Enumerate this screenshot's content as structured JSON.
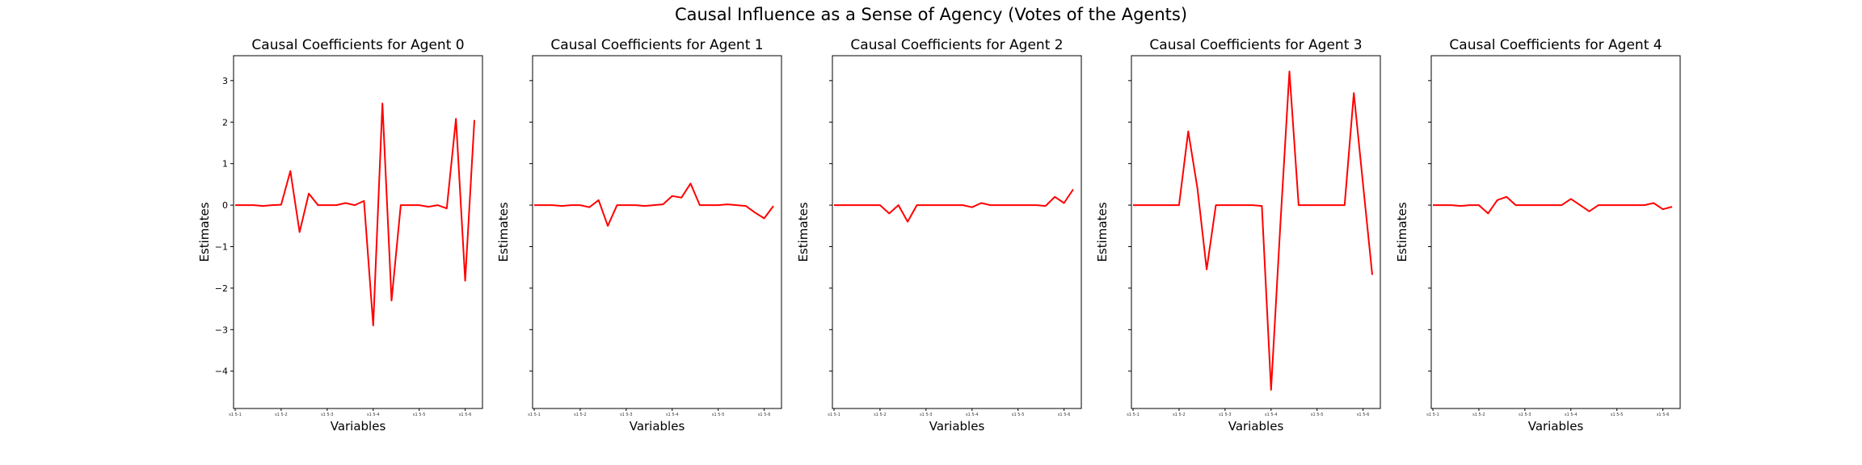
{
  "figure": {
    "title": "Causal Influence as a Sense of Agency (Votes of the Agents)"
  },
  "chart_data": [
    {
      "type": "line",
      "title": "Causal Coefficients for Agent 0",
      "xlabel": "Variables",
      "ylabel": "Estimates",
      "ylim": [
        -4.9,
        3.6
      ],
      "yticks": [
        -4,
        -3,
        -2,
        -1,
        0,
        1,
        2,
        3
      ],
      "show_ytick_labels": true,
      "xtick_labels": [
        "s1 5-1",
        "s1 5-2",
        "s1 5-3",
        "s1 5-4",
        "s1 5-5",
        "s1 5-6"
      ],
      "line_color": "#ff0000",
      "values": [
        0,
        0,
        0,
        -0.02,
        0,
        0.01,
        0.82,
        -0.65,
        0.28,
        0,
        0,
        0,
        0.05,
        0,
        0.1,
        -2.9,
        2.45,
        -2.3,
        0,
        0,
        0,
        -0.04,
        0,
        -0.08,
        2.08,
        -1.82,
        2.05
      ]
    },
    {
      "type": "line",
      "title": "Causal Coefficients for Agent 1",
      "xlabel": "Variables",
      "ylabel": "Estimates",
      "ylim": [
        -4.9,
        3.6
      ],
      "yticks": [
        -4,
        -3,
        -2,
        -1,
        0,
        1,
        2,
        3
      ],
      "show_ytick_labels": false,
      "xtick_labels": [
        "s1 5-1",
        "s1 5-2",
        "s1 5-3",
        "s1 5-4",
        "s1 5-5",
        "s1 5-6"
      ],
      "line_color": "#ff0000",
      "values": [
        0,
        0,
        0,
        -0.02,
        0,
        0,
        -0.05,
        0.12,
        -0.5,
        0,
        0,
        0,
        -0.02,
        0,
        0.02,
        0.22,
        0.18,
        0.52,
        0,
        0,
        0,
        0.02,
        0,
        -0.02,
        -0.18,
        -0.32,
        -0.02
      ]
    },
    {
      "type": "line",
      "title": "Causal Coefficients for Agent 2",
      "xlabel": "Variables",
      "ylabel": "Estimates",
      "ylim": [
        -4.9,
        3.6
      ],
      "yticks": [
        -4,
        -3,
        -2,
        -1,
        0,
        1,
        2,
        3
      ],
      "show_ytick_labels": false,
      "xtick_labels": [
        "s1 5-1",
        "s1 5-2",
        "s1 5-3",
        "s1 5-4",
        "s1 5-5",
        "s1 5-6"
      ],
      "line_color": "#ff0000",
      "values": [
        0,
        0,
        0,
        0,
        0,
        0,
        -0.2,
        0,
        -0.4,
        0,
        0,
        0,
        0,
        0,
        0,
        -0.05,
        0.05,
        0,
        0,
        0,
        0,
        0,
        0,
        -0.02,
        0.2,
        0.05,
        0.38
      ]
    },
    {
      "type": "line",
      "title": "Causal Coefficients for Agent 3",
      "xlabel": "Variables",
      "ylabel": "Estimates",
      "ylim": [
        -4.9,
        3.6
      ],
      "yticks": [
        -4,
        -3,
        -2,
        -1,
        0,
        1,
        2,
        3
      ],
      "show_ytick_labels": false,
      "xtick_labels": [
        "s1 5-1",
        "s1 5-2",
        "s1 5-3",
        "s1 5-4",
        "s1 5-5",
        "s1 5-6"
      ],
      "line_color": "#ff0000",
      "values": [
        0,
        0,
        0,
        0,
        0,
        0,
        1.78,
        0.4,
        -1.55,
        0,
        0,
        0,
        0,
        0,
        -0.02,
        -4.45,
        -0.5,
        3.22,
        0,
        0,
        0,
        0,
        0,
        0,
        2.7,
        0.5,
        -1.68
      ]
    },
    {
      "type": "line",
      "title": "Causal Coefficients for Agent 4",
      "xlabel": "Variables",
      "ylabel": "Estimates",
      "ylim": [
        -4.9,
        3.6
      ],
      "yticks": [
        -4,
        -3,
        -2,
        -1,
        0,
        1,
        2,
        3
      ],
      "show_ytick_labels": false,
      "xtick_labels": [
        "s1 5-1",
        "s1 5-2",
        "s1 5-3",
        "s1 5-4",
        "s1 5-5",
        "s1 5-6"
      ],
      "line_color": "#ff0000",
      "values": [
        0,
        0,
        0,
        -0.02,
        0,
        0,
        -0.2,
        0.12,
        0.2,
        0,
        0,
        0,
        0,
        0,
        0,
        0.15,
        0,
        -0.15,
        0,
        0,
        0,
        0,
        0,
        0,
        0.05,
        -0.1,
        -0.04
      ]
    }
  ]
}
